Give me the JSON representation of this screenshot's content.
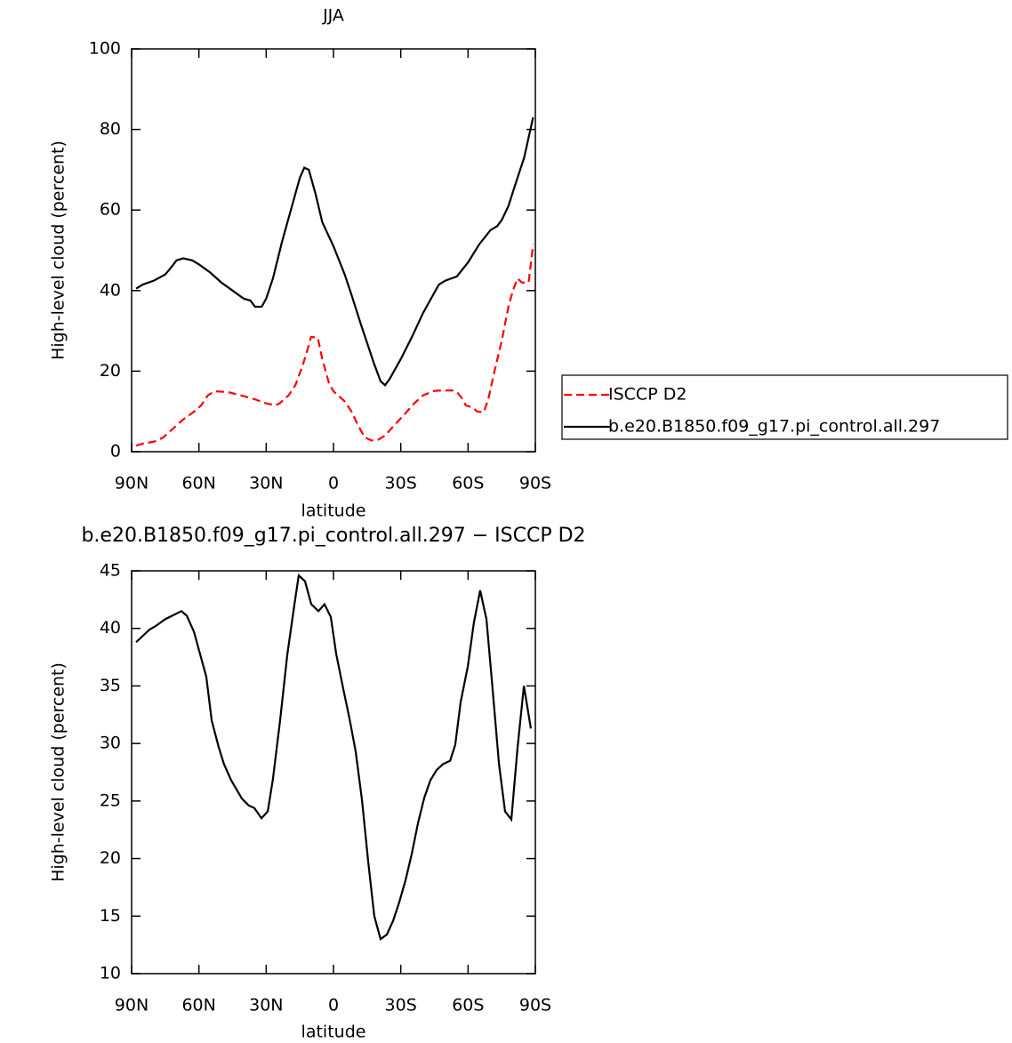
{
  "chart_data": [
    {
      "type": "line",
      "title": "JJA",
      "xlabel": "latitude",
      "ylabel": "High-level cloud (percent)",
      "xlim": [
        90,
        -90
      ],
      "xticks": [
        {
          "value": 90,
          "label": "90N"
        },
        {
          "value": 60,
          "label": "60N"
        },
        {
          "value": 30,
          "label": "30N"
        },
        0,
        {
          "value": -30,
          "label": "30S"
        },
        {
          "value": -60,
          "label": "60S"
        },
        {
          "value": -90,
          "label": "90S"
        }
      ],
      "ylim": [
        0,
        100
      ],
      "yticks": [
        0,
        20,
        40,
        60,
        80,
        100
      ],
      "legend": "outside-right",
      "series": [
        {
          "name": "ISCCP D2",
          "color": "#ff0000",
          "dash": true,
          "x": [
            88,
            85,
            80,
            76,
            72,
            67,
            62,
            59,
            56,
            53,
            47,
            40,
            35,
            30,
            26,
            24,
            20,
            17,
            14,
            12,
            10,
            7,
            5,
            2,
            0,
            -5,
            -8,
            -11,
            -14,
            -17,
            -20,
            -23,
            -27,
            -32,
            -36,
            -40,
            -45,
            -48,
            -53,
            -55,
            -57,
            -59,
            -62,
            -64,
            -67,
            -69,
            -72,
            -75,
            -78,
            -80,
            -82,
            -84,
            -87,
            -89
          ],
          "values": [
            1.5,
            2,
            2.5,
            3.5,
            5.5,
            8,
            10,
            11.5,
            14,
            15,
            14.8,
            13.8,
            13,
            12,
            11.5,
            12,
            14,
            16.5,
            21,
            24.5,
            28.5,
            28.3,
            23,
            17,
            15,
            12.5,
            10,
            6.5,
            3.5,
            2.8,
            3,
            4,
            6.5,
            9.5,
            12,
            14,
            15.1,
            15.2,
            15.2,
            14.8,
            13.5,
            11.5,
            11,
            10,
            9.8,
            13,
            20.5,
            27.5,
            36,
            40,
            43,
            42,
            42,
            51.5
          ]
        },
        {
          "name": "b.e20.B1850.f09_g17.pi_control.all.297",
          "color": "#000000",
          "dash": false,
          "x": [
            88,
            85,
            80,
            75,
            72,
            70,
            67,
            63,
            60,
            55,
            50,
            45,
            40,
            37,
            35,
            32,
            30,
            27,
            23,
            20,
            17,
            15,
            13,
            11,
            8,
            5,
            0,
            -5,
            -8,
            -12,
            -15,
            -18,
            -21,
            -23,
            -25,
            -30,
            -35,
            -40,
            -43,
            -47,
            -50,
            -55,
            -60,
            -65,
            -70,
            -73,
            -75,
            -78,
            -80,
            -85,
            -89
          ],
          "values": [
            40.5,
            41.5,
            42.5,
            44,
            46,
            47.5,
            48,
            47.5,
            46.5,
            44.5,
            42,
            40,
            38,
            37.5,
            36,
            36,
            38,
            43,
            52,
            58,
            64,
            68,
            70.5,
            70,
            64,
            57,
            51,
            44,
            39,
            32,
            27,
            22,
            17.5,
            16.5,
            18,
            23,
            28.5,
            34.5,
            37.5,
            41.5,
            42.5,
            43.5,
            47,
            51.5,
            55,
            56,
            57.5,
            61,
            64.5,
            73,
            83
          ]
        }
      ]
    },
    {
      "type": "line",
      "title": "b.e20.B1850.f09_g17.pi_control.all.297 − ISCCP D2",
      "xlabel": "latitude",
      "ylabel": "High-level cloud (percent)",
      "xlim": [
        90,
        -90
      ],
      "xticks": [
        {
          "value": 90,
          "label": "90N"
        },
        {
          "value": 60,
          "label": "60N"
        },
        {
          "value": 30,
          "label": "30N"
        },
        0,
        {
          "value": -30,
          "label": "30S"
        },
        {
          "value": -60,
          "label": "60S"
        },
        {
          "value": -90,
          "label": "90S"
        }
      ],
      "ylim": [
        10,
        45
      ],
      "yticks": [
        10,
        15,
        20,
        25,
        30,
        35,
        40,
        45
      ],
      "series": [
        {
          "color": "#000000",
          "dash": false,
          "x": [
            88,
            82,
            79.3,
            75,
            67.8,
            65.4,
            62.2,
            56.7,
            54.3,
            51.2,
            48.8,
            45.6,
            40.8,
            37.7,
            35.3,
            32.1,
            29.3,
            27,
            23.8,
            20.6,
            17.4,
            15.5,
            12.7,
            9.9,
            6.7,
            4,
            1.2,
            -1.2,
            -4.4,
            -7.1,
            -9.9,
            -12.7,
            -15.5,
            -18.2,
            -21,
            -23.8,
            -26.6,
            -29.3,
            -32.1,
            -34.9,
            -37.7,
            -40.5,
            -43.2,
            -46,
            -48.8,
            -52,
            -54.3,
            -56.7,
            -59.9,
            -62.6,
            -65.4,
            -68.2,
            -70.6,
            -73.8,
            -76.5,
            -79.3,
            -82.1,
            -84.9,
            -88
          ],
          "values": [
            38.8,
            39.9,
            40.2,
            40.8,
            41.5,
            41.1,
            39.7,
            35.8,
            32,
            29.7,
            28.2,
            26.8,
            25.2,
            24.6,
            24.4,
            23.5,
            24.1,
            26.9,
            32,
            37.7,
            42.1,
            44.6,
            44.1,
            42.1,
            41.5,
            42.1,
            41,
            37.8,
            34.7,
            32.2,
            29.3,
            25.1,
            19.7,
            15,
            13,
            13.4,
            14.6,
            16.2,
            18.1,
            20.4,
            23.1,
            25.3,
            26.8,
            27.7,
            28.2,
            28.5,
            29.9,
            33.6,
            36.7,
            40.5,
            43.3,
            40.8,
            35.5,
            28.2,
            24.1,
            23.4,
            29.7,
            35,
            31.3
          ]
        }
      ]
    }
  ]
}
